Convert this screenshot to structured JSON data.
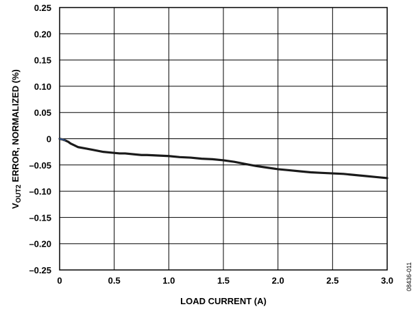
{
  "chart_data": {
    "type": "line",
    "title": "",
    "xlabel": "LOAD CURRENT (A)",
    "ylabel": {
      "main_prefix": "V",
      "subscript": "OUT2",
      "suffix": " ERROR, NORMALIZED (%)"
    },
    "xlim": [
      0,
      3.0
    ],
    "ylim": [
      -0.25,
      0.25
    ],
    "xticks": [
      0,
      0.5,
      1.0,
      1.5,
      2.0,
      2.5,
      3.0
    ],
    "xtick_labels": [
      "0",
      "0.5",
      "1.0",
      "1.5",
      "2.0",
      "2.5",
      "3.0"
    ],
    "yticks": [
      0.25,
      0.2,
      0.15,
      0.1,
      0.05,
      0,
      -0.05,
      -0.1,
      -0.15,
      -0.2,
      -0.25
    ],
    "ytick_labels": [
      "0.25",
      "0.20",
      "0.15",
      "0.10",
      "0.05",
      "0",
      "–0.05",
      "–0.10",
      "–0.15",
      "–0.20",
      "–0.25"
    ],
    "grid": true,
    "series": [
      {
        "color": "#1a1a1a",
        "start_color": "#3a5f9e",
        "x": [
          0,
          0.02,
          0.05,
          0.08,
          0.1,
          0.13,
          0.17,
          0.25,
          0.3,
          0.4,
          0.5,
          0.55,
          0.6,
          0.7,
          0.75,
          0.8,
          0.9,
          1.0,
          1.1,
          1.2,
          1.3,
          1.4,
          1.5,
          1.6,
          1.7,
          1.8,
          1.9,
          2.0,
          2.1,
          2.2,
          2.3,
          2.4,
          2.5,
          2.6,
          2.7,
          2.8,
          2.9,
          3.0
        ],
        "y": [
          0,
          -0.001,
          -0.003,
          -0.006,
          -0.009,
          -0.012,
          -0.016,
          -0.019,
          -0.021,
          -0.025,
          -0.027,
          -0.028,
          -0.028,
          -0.03,
          -0.031,
          -0.031,
          -0.032,
          -0.033,
          -0.035,
          -0.036,
          -0.038,
          -0.039,
          -0.041,
          -0.044,
          -0.048,
          -0.052,
          -0.055,
          -0.058,
          -0.06,
          -0.062,
          -0.064,
          -0.065,
          -0.066,
          -0.067,
          -0.069,
          -0.071,
          -0.073,
          -0.075
        ]
      }
    ]
  },
  "figure_id": "08436-011"
}
